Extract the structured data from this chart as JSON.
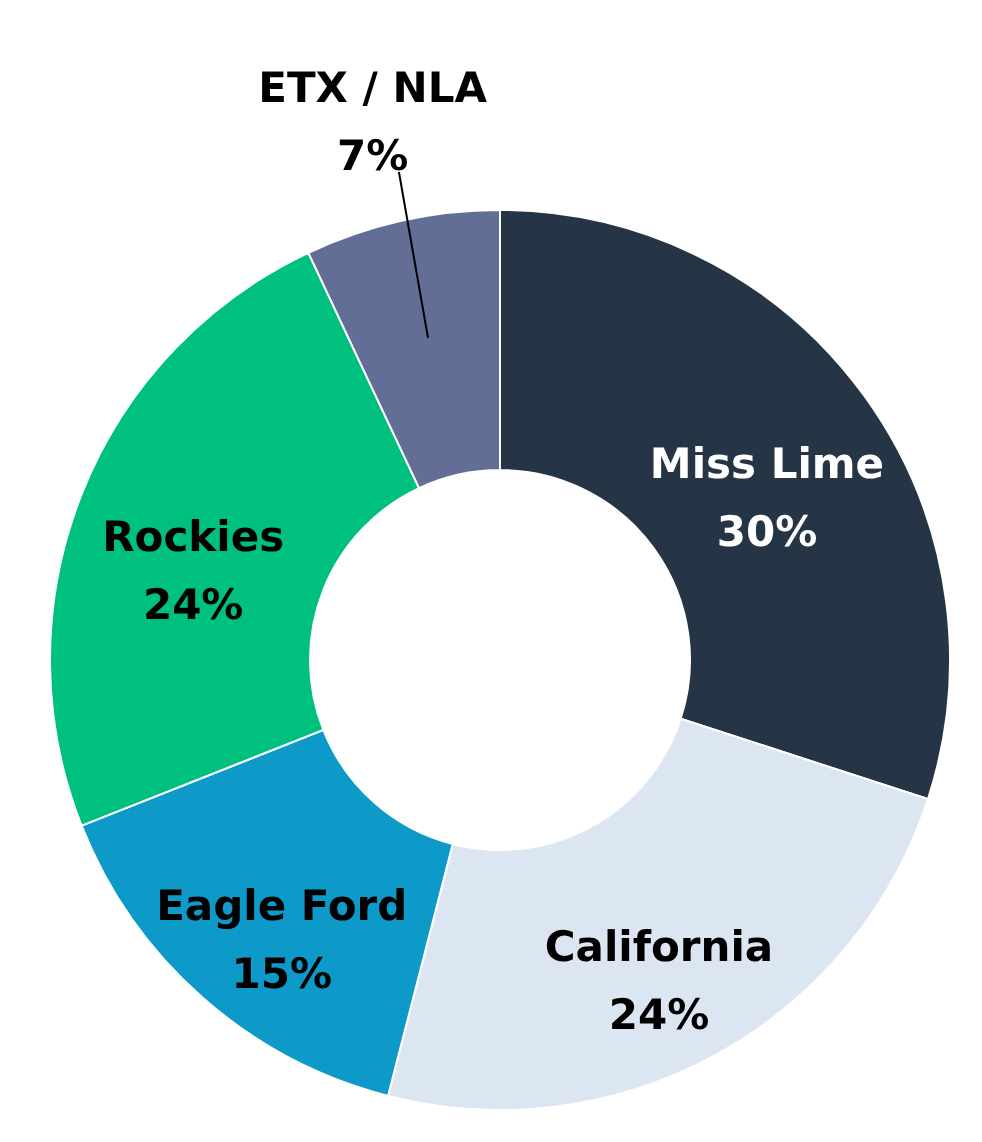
{
  "chart_data": {
    "type": "donut",
    "categories": [
      "Miss Lime",
      "California",
      "Eagle Ford",
      "Rockies",
      "ETX / NLA"
    ],
    "values": [
      30,
      24,
      15,
      24,
      7
    ],
    "value_labels": [
      "30%",
      "24%",
      "15%",
      "24%",
      "7%"
    ],
    "colors": [
      "#263545",
      "#dce6f2",
      "#0e9ac8",
      "#00c07f",
      "#626e96"
    ]
  }
}
